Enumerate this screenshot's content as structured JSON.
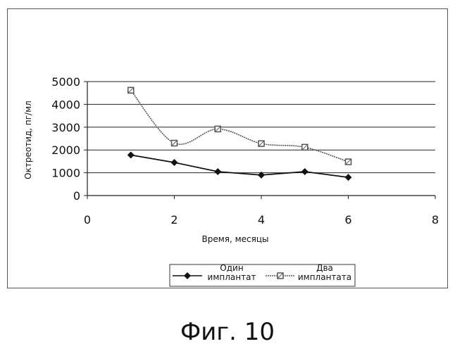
{
  "chart_data": {
    "type": "line",
    "title": "",
    "xlabel": "Время, месяцы",
    "ylabel": "Октреотид, пг/мл",
    "xlim": [
      0,
      8
    ],
    "ylim": [
      0,
      5000
    ],
    "x_ticks": [
      "0",
      "2",
      "4",
      "6",
      "8"
    ],
    "y_ticks": [
      "0",
      "1000",
      "2000",
      "3000",
      "4000",
      "5000"
    ],
    "grid": "horizontal",
    "legend_position": "bottom",
    "series": [
      {
        "name": "Один имплантат",
        "name_lines": [
          "Один",
          "имплантат"
        ],
        "color": "#111111",
        "marker": "diamond",
        "x": [
          1,
          2,
          3,
          4,
          5,
          6
        ],
        "y": [
          1780,
          1450,
          1050,
          900,
          1050,
          800
        ]
      },
      {
        "name": "Два имплантата",
        "name_lines": [
          "Два",
          "имплантата"
        ],
        "color": "#555555",
        "marker": "square",
        "x": [
          1,
          2,
          3,
          4,
          5,
          6
        ],
        "y": [
          4620,
          2300,
          2920,
          2280,
          2120,
          1480
        ]
      }
    ]
  },
  "caption": "Фиг. 10"
}
